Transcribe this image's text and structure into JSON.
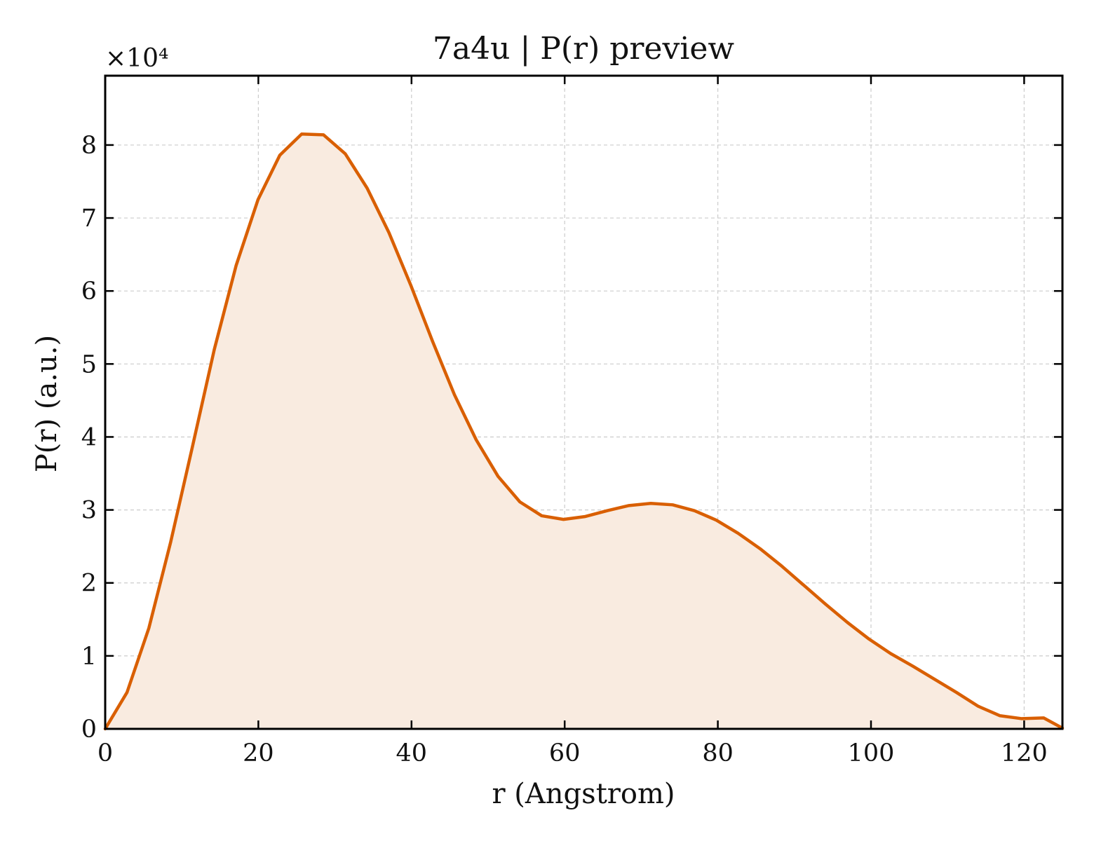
{
  "chart_data": {
    "type": "area",
    "title": "7a4u | P(r) preview",
    "xlabel": "r (Angstrom)",
    "ylabel": "P(r) (a.u.)",
    "y_multiplier_label": "×10⁴",
    "y_scale": 10000,
    "xlim": [
      0,
      125
    ],
    "ylim": [
      0,
      8.95
    ],
    "x_ticks": [
      0,
      20,
      40,
      60,
      80,
      100,
      120
    ],
    "y_ticks": [
      0,
      1,
      2,
      3,
      4,
      5,
      6,
      7,
      8
    ],
    "grid": true,
    "line_color": "#d95f02",
    "fill_color": "#f9ebe0",
    "series": [
      {
        "x": [
          0,
          2.85,
          5.7,
          8.55,
          11.4,
          14.25,
          17.1,
          19.95,
          22.8,
          25.65,
          28.5,
          31.35,
          34.2,
          37.05,
          39.9,
          42.75,
          45.6,
          48.45,
          51.3,
          54.15,
          57.0,
          59.85,
          62.7,
          65.55,
          68.4,
          71.25,
          74.1,
          76.95,
          79.8,
          82.65,
          85.5,
          88.35,
          91.2,
          94.05,
          96.9,
          99.75,
          102.6,
          105.45,
          108.3,
          111.15,
          114.0,
          116.85,
          119.7,
          122.55,
          125.0
        ],
        "values": [
          0,
          0.5,
          1.38,
          2.56,
          3.87,
          5.2,
          6.35,
          7.25,
          7.86,
          8.15,
          8.14,
          7.88,
          7.41,
          6.8,
          6.08,
          5.31,
          4.58,
          3.96,
          3.46,
          3.11,
          2.92,
          2.87,
          2.91,
          2.99,
          3.06,
          3.09,
          3.07,
          2.99,
          2.86,
          2.68,
          2.47,
          2.23,
          1.97,
          1.71,
          1.46,
          1.23,
          1.03,
          0.86,
          0.68,
          0.5,
          0.31,
          0.18,
          0.14,
          0.15,
          0.01
        ]
      }
    ]
  }
}
